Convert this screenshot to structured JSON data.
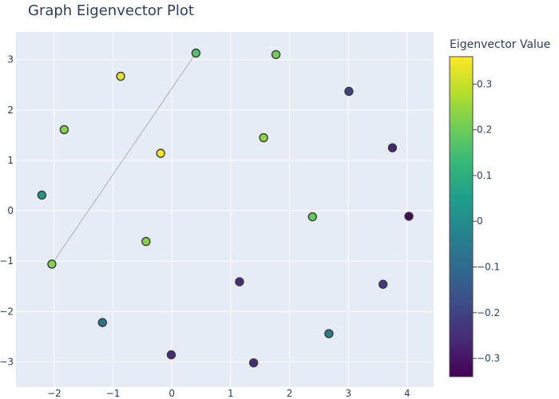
{
  "chart_data": {
    "type": "scatter",
    "title": "Graph Eigenvector Plot",
    "xlabel": "",
    "ylabel": "",
    "xlim": [
      -2.65,
      4.45
    ],
    "ylim": [
      -3.5,
      3.55
    ],
    "x_ticks": [
      -2,
      -1,
      0,
      1,
      2,
      3,
      4
    ],
    "y_ticks": [
      -3,
      -2,
      -1,
      0,
      1,
      2,
      3
    ],
    "grid": true,
    "colorbar": {
      "title": "Eigenvector Value",
      "range": [
        -0.34,
        0.36
      ],
      "ticks": [
        0.3,
        0.2,
        0.1,
        0,
        -0.1,
        -0.2,
        -0.3
      ],
      "tick_labels": [
        "0.3",
        "0.2",
        "0.1",
        "0",
        "−0.1",
        "−0.2",
        "−0.3"
      ],
      "colorscale": "Viridis"
    },
    "edges": [
      {
        "from": [
          0.41,
          3.13
        ],
        "to": [
          -2.04,
          -1.06
        ]
      }
    ],
    "points": [
      {
        "x": 0.41,
        "y": 3.13,
        "value": 0.17
      },
      {
        "x": 1.77,
        "y": 3.1,
        "value": 0.21
      },
      {
        "x": -0.87,
        "y": 2.67,
        "value": 0.33
      },
      {
        "x": 3.01,
        "y": 2.37,
        "value": -0.2
      },
      {
        "x": -1.83,
        "y": 1.61,
        "value": 0.23
      },
      {
        "x": 1.56,
        "y": 1.45,
        "value": 0.24
      },
      {
        "x": 3.75,
        "y": 1.25,
        "value": -0.27
      },
      {
        "x": -0.19,
        "y": 1.14,
        "value": 0.35
      },
      {
        "x": -2.21,
        "y": 0.31,
        "value": 0.03
      },
      {
        "x": 2.39,
        "y": -0.12,
        "value": 0.19
      },
      {
        "x": 4.03,
        "y": -0.11,
        "value": -0.33
      },
      {
        "x": -0.44,
        "y": -0.61,
        "value": 0.23
      },
      {
        "x": -2.04,
        "y": -1.06,
        "value": 0.23
      },
      {
        "x": 1.15,
        "y": -1.41,
        "value": -0.25
      },
      {
        "x": 3.59,
        "y": -1.46,
        "value": -0.23
      },
      {
        "x": -1.18,
        "y": -2.22,
        "value": -0.07
      },
      {
        "x": 2.67,
        "y": -2.44,
        "value": -0.05
      },
      {
        "x": -0.01,
        "y": -2.86,
        "value": -0.26
      },
      {
        "x": 1.39,
        "y": -3.02,
        "value": -0.25
      }
    ]
  }
}
